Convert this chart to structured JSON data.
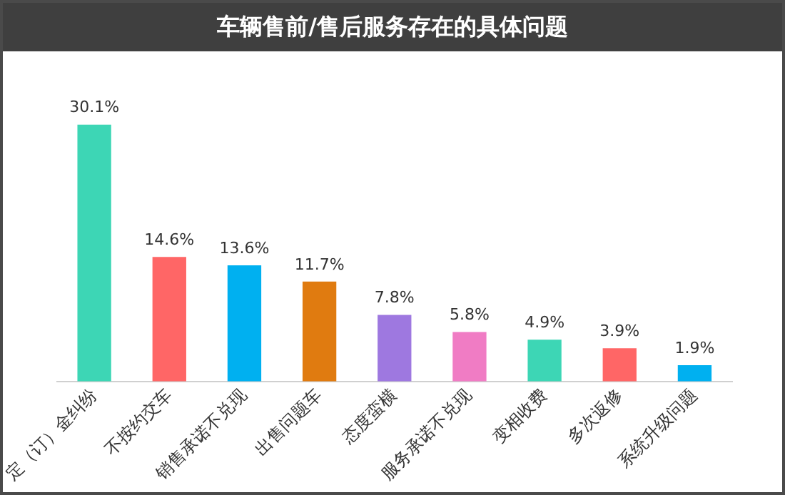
{
  "chart_data": {
    "type": "bar",
    "title": "车辆售前/售后服务存在的具体问题",
    "categories": [
      "定（订）金纠纷",
      "不按约交车",
      "销售承诺不兑现",
      "出售问题车",
      "态度蛮横",
      "服务承诺不兑现",
      "变相收费",
      "多次返修",
      "系统升级问题"
    ],
    "values": [
      30.1,
      14.6,
      13.6,
      11.7,
      7.8,
      5.8,
      4.9,
      3.9,
      1.9
    ],
    "colors": [
      "#3dd6b5",
      "#ff6666",
      "#00b0f0",
      "#e07b10",
      "#9e78e0",
      "#f07cc4",
      "#3dd6b5",
      "#ff6666",
      "#00b0f0"
    ],
    "value_labels": [
      "30.1%",
      "14.6%",
      "13.6%",
      "11.7%",
      "7.8%",
      "5.8%",
      "4.9%",
      "3.9%",
      "1.9%"
    ],
    "tick_labels": "x",
    "grid": false,
    "legend": false
  }
}
